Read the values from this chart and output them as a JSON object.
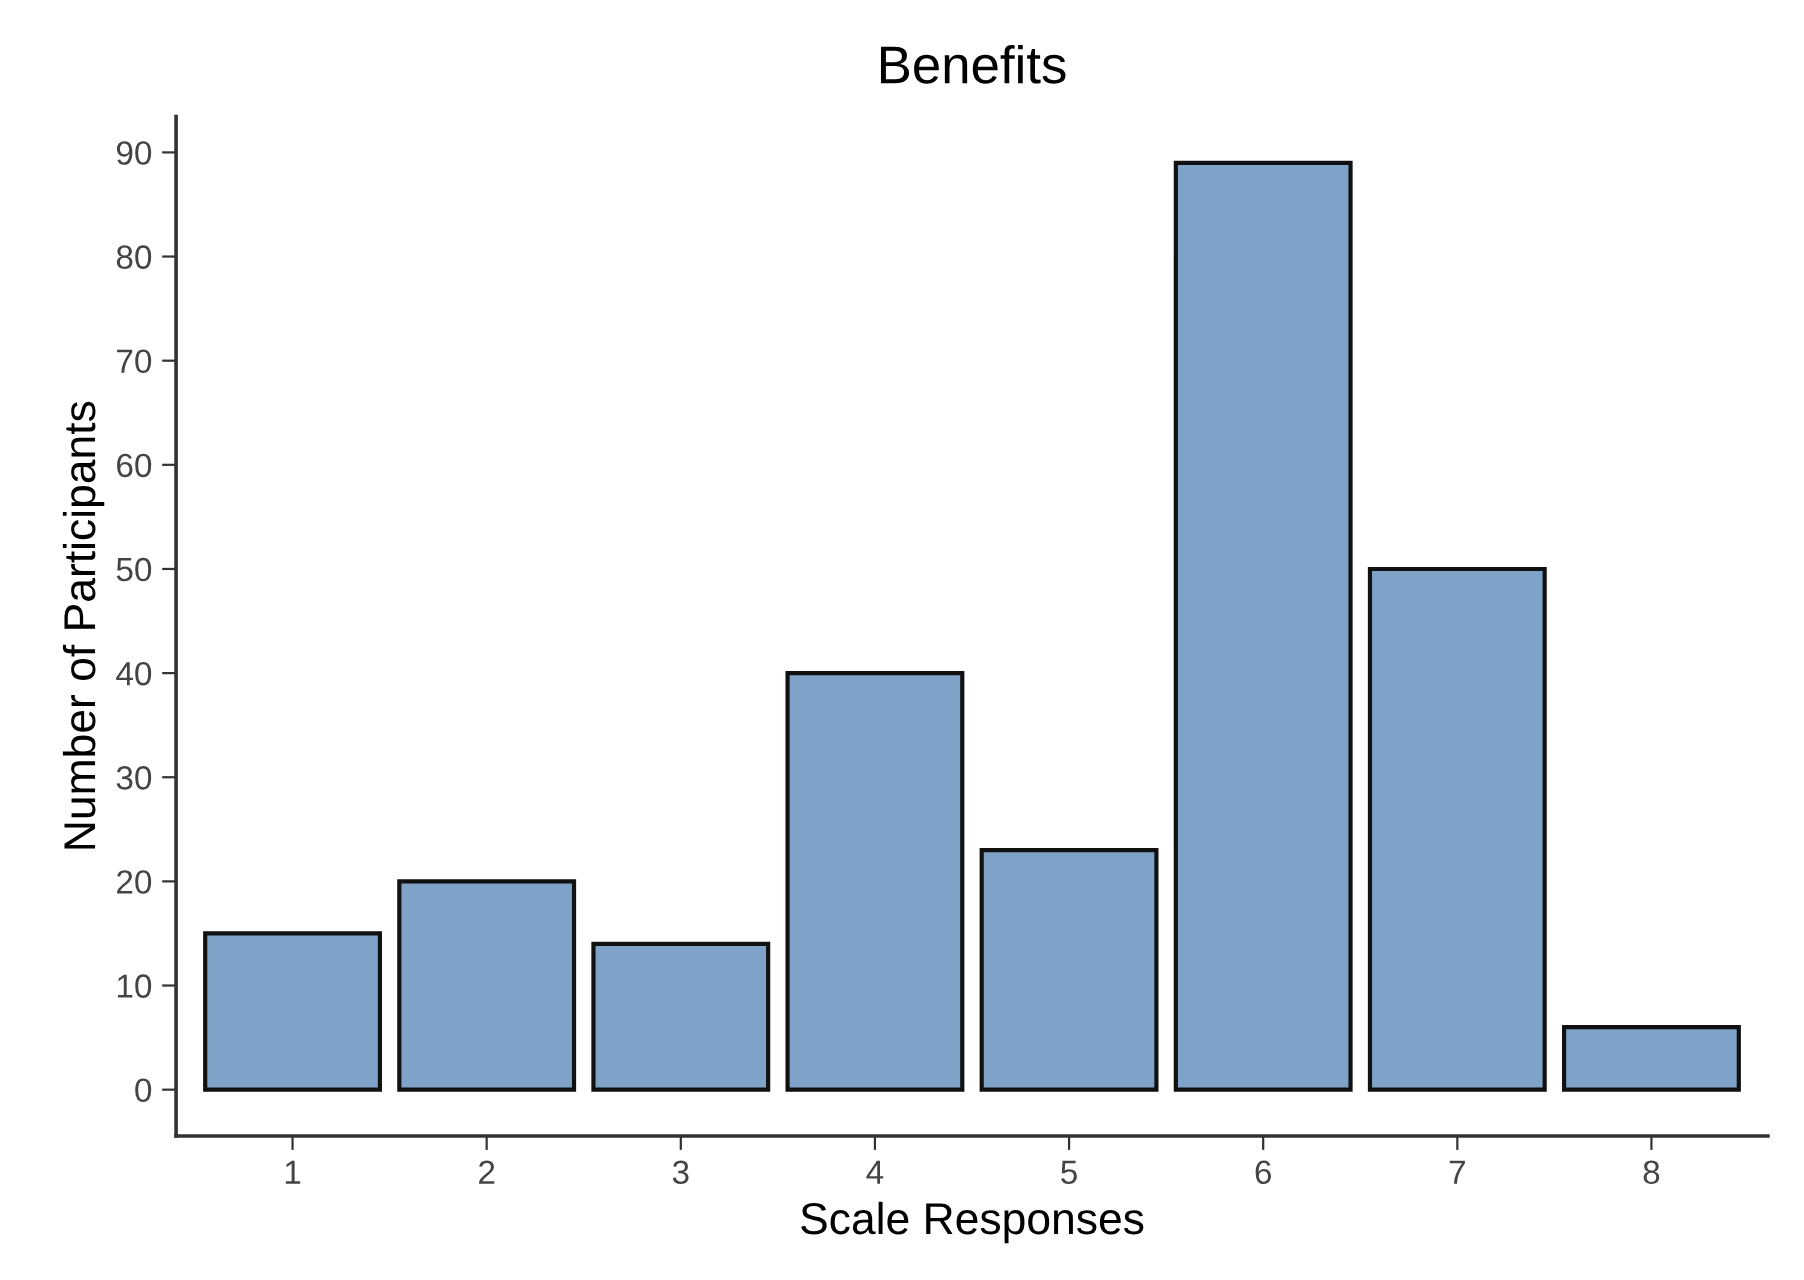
{
  "chart_data": {
    "type": "bar",
    "title": "Benefits",
    "xlabel": "Scale Responses",
    "ylabel": "Number of Participants",
    "categories": [
      "1",
      "2",
      "3",
      "4",
      "5",
      "6",
      "7",
      "8"
    ],
    "values": [
      15,
      20,
      14,
      40,
      23,
      89,
      50,
      6
    ],
    "color": "#7fa2c8",
    "ylim": [
      -4.45,
      93.45
    ],
    "yticks": [
      0,
      10,
      20,
      30,
      40,
      50,
      60,
      70,
      80,
      90
    ],
    "grid": false
  }
}
